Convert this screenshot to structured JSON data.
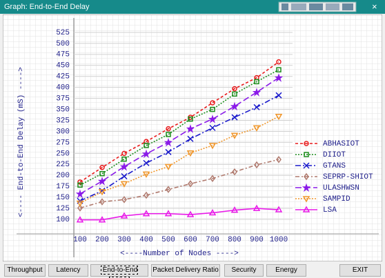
{
  "window": {
    "title": "Graph: End-to-End Delay",
    "close": "×"
  },
  "buttons": [
    "Throughput",
    "Latency",
    "End-to-End Delay",
    "Packet Delivery Ratio",
    "Security",
    "Energy",
    "EXIT"
  ],
  "chart_data": {
    "type": "line",
    "xlabel": "<----Number of Nodes ---->",
    "ylabel": "<---- End-to-End Delay (mS) ---->",
    "categories": [
      "100",
      "200",
      "300",
      "400",
      "500",
      "600",
      "700",
      "800",
      "900",
      "1000"
    ],
    "ylim": [
      75,
      550
    ],
    "yticks": [
      100,
      125,
      150,
      175,
      200,
      225,
      250,
      275,
      300,
      325,
      350,
      375,
      400,
      425,
      450,
      475,
      500,
      525
    ],
    "grid": true,
    "legend": "right",
    "series": [
      {
        "name": "ABHASIOT",
        "color": "#e8191a",
        "marker": "circle",
        "dash": "4,3",
        "values": [
          185,
          218,
          250,
          277,
          306,
          332,
          365,
          397,
          422,
          458
        ]
      },
      {
        "name": "DIIOT",
        "color": "#1a8c1a",
        "marker": "square",
        "dash": "2,2",
        "values": [
          178,
          204,
          237,
          268,
          293,
          328,
          350,
          385,
          413,
          440
        ]
      },
      {
        "name": "GTANS",
        "color": "#1a1acc",
        "marker": "x",
        "dash": "8,3,2,3",
        "values": [
          142,
          165,
          198,
          228,
          253,
          283,
          308,
          332,
          355,
          382
        ]
      },
      {
        "name": "SEPRP-SHIOT",
        "color": "#b07a6e",
        "marker": "diamond",
        "dash": "6,3,2,3",
        "values": [
          126,
          140,
          145,
          155,
          168,
          181,
          193,
          208,
          224,
          236
        ]
      },
      {
        "name": "ULASHWSN",
        "color": "#8a1ae8",
        "marker": "star",
        "dash": "9,4",
        "values": [
          158,
          187,
          220,
          249,
          275,
          306,
          328,
          357,
          389,
          422
        ]
      },
      {
        "name": "SAMPID",
        "color": "#f0962a",
        "marker": "tridown",
        "dash": "2,2",
        "values": [
          137,
          163,
          181,
          203,
          220,
          251,
          268,
          291,
          308,
          334
        ]
      },
      {
        "name": "LSA",
        "color": "#e81ae8",
        "marker": "triup",
        "dash": "",
        "values": [
          99,
          99,
          108,
          113,
          113,
          111,
          115,
          121,
          125,
          122
        ]
      }
    ]
  }
}
